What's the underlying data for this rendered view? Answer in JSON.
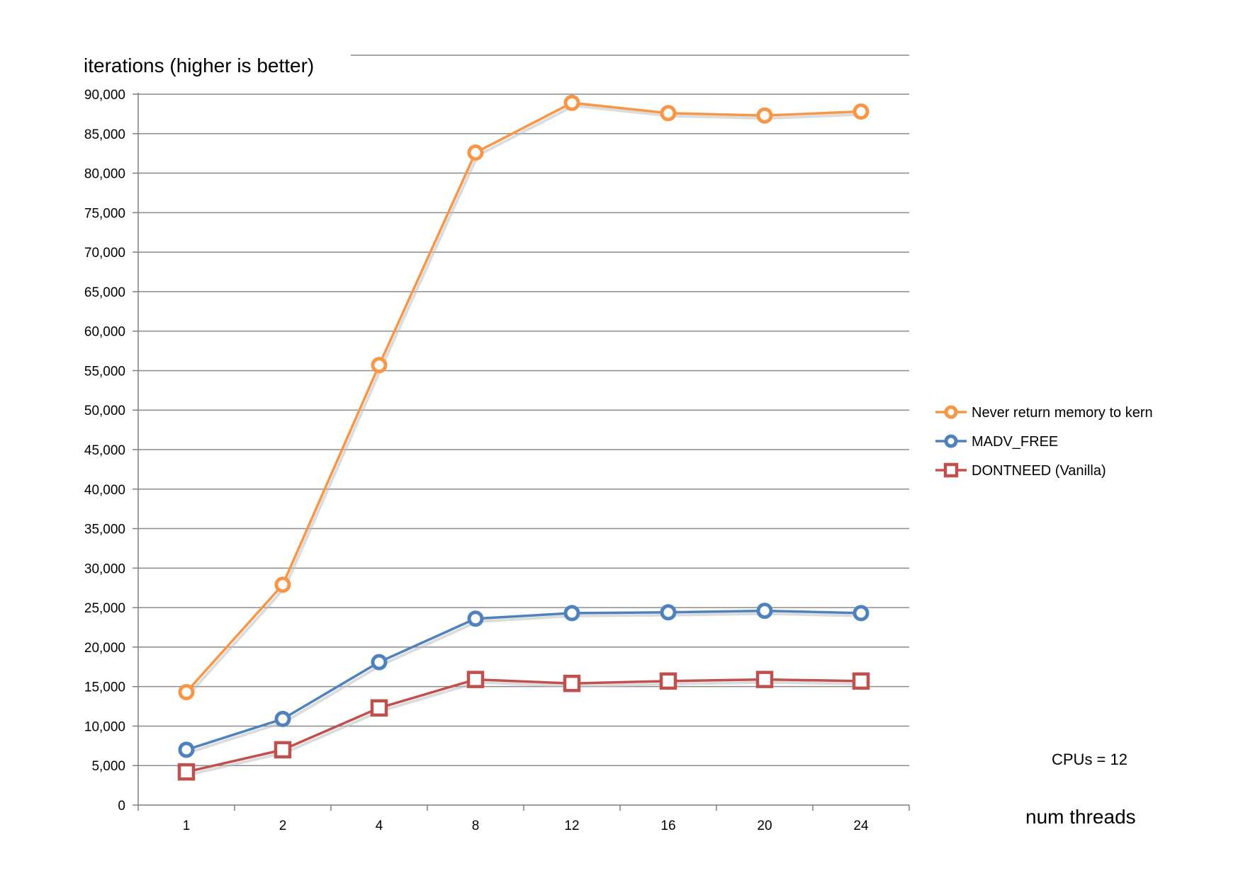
{
  "chart_data": {
    "type": "line",
    "title": "",
    "ylabel": "iterations (higher is better)",
    "xlabel": "num threads",
    "annotation": "CPUs = 12",
    "categories": [
      "1",
      "2",
      "4",
      "8",
      "12",
      "16",
      "20",
      "24"
    ],
    "ylim": [
      0,
      90000
    ],
    "yticks": [
      0,
      5000,
      10000,
      15000,
      20000,
      25000,
      30000,
      35000,
      40000,
      45000,
      50000,
      55000,
      60000,
      65000,
      70000,
      75000,
      80000,
      85000,
      90000
    ],
    "ytick_labels": [
      "0",
      "5,000",
      "10,000",
      "15,000",
      "20,000",
      "25,000",
      "30,000",
      "35,000",
      "40,000",
      "45,000",
      "50,000",
      "55,000",
      "60,000",
      "65,000",
      "70,000",
      "75,000",
      "80,000",
      "85,000",
      "90,000"
    ],
    "grid": true,
    "legend_position": "right",
    "series": [
      {
        "name": "Never return memory to kern",
        "color": "#F79646",
        "marker": "circle",
        "values": [
          14300,
          27900,
          55700,
          82600,
          88900,
          87600,
          87300,
          87800
        ]
      },
      {
        "name": "MADV_FREE",
        "color": "#4F81BD",
        "marker": "circle",
        "values": [
          7000,
          10900,
          18100,
          23600,
          24300,
          24400,
          24600,
          24300
        ]
      },
      {
        "name": "DONTNEED (Vanilla)",
        "color": "#C0504D",
        "marker": "square",
        "values": [
          4200,
          7000,
          12300,
          15900,
          15400,
          15700,
          15900,
          15700
        ]
      }
    ]
  }
}
